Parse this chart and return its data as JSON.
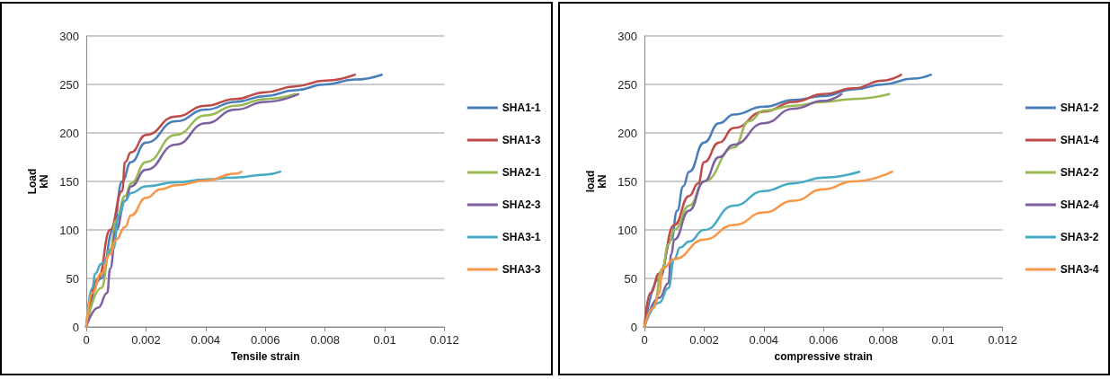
{
  "chart_data": [
    {
      "type": "line",
      "xlabel": "Tensile strain",
      "ylabel": "Load\nkN",
      "xlim": [
        0,
        0.012
      ],
      "xticks": [
        0,
        0.002,
        0.004,
        0.006,
        0.008,
        0.01,
        0.012
      ],
      "ylim": [
        0,
        300
      ],
      "yticks": [
        0,
        50,
        100,
        150,
        200,
        250,
        300
      ],
      "grid": "y",
      "legend": "right",
      "marker": "none",
      "line_style": "solid",
      "series": [
        {
          "name": "SHA1-1",
          "color": "#4a7ebb",
          "x": [
            0,
            0.0005,
            0.0009,
            0.0012,
            0.0015,
            0.002,
            0.003,
            0.004,
            0.005,
            0.006,
            0.007,
            0.008,
            0.009,
            0.0099
          ],
          "values": [
            0,
            50,
            100,
            150,
            170,
            190,
            212,
            224,
            232,
            238,
            244,
            250,
            255,
            260
          ]
        },
        {
          "name": "SHA1-3",
          "color": "#be4b48",
          "x": [
            0,
            0.0004,
            0.0008,
            0.0012,
            0.0013,
            0.0015,
            0.002,
            0.003,
            0.004,
            0.005,
            0.006,
            0.007,
            0.008,
            0.009
          ],
          "values": [
            0,
            50,
            100,
            140,
            170,
            180,
            198,
            217,
            228,
            235,
            242,
            248,
            254,
            260
          ]
        },
        {
          "name": "SHA2-1",
          "color": "#98b954",
          "x": [
            0,
            0.0005,
            0.0008,
            0.001,
            0.0013,
            0.0015,
            0.002,
            0.003,
            0.004,
            0.005,
            0.006,
            0.007
          ],
          "values": [
            0,
            40,
            80,
            110,
            135,
            148,
            170,
            198,
            218,
            228,
            235,
            240
          ]
        },
        {
          "name": "SHA2-3",
          "color": "#7d60a0",
          "x": [
            0,
            0.0004,
            0.0007,
            0.0008,
            0.001,
            0.0013,
            0.0015,
            0.002,
            0.003,
            0.004,
            0.005,
            0.006,
            0.0071
          ],
          "values": [
            0,
            20,
            35,
            60,
            100,
            130,
            145,
            162,
            188,
            210,
            224,
            232,
            240
          ]
        },
        {
          "name": "SHA3-1",
          "color": "#46aac5",
          "x": [
            0,
            0.0002,
            0.0003,
            0.0005,
            0.0009,
            0.0011,
            0.0013,
            0.0015,
            0.002,
            0.003,
            0.004,
            0.005,
            0.006,
            0.0065
          ],
          "values": [
            0,
            40,
            55,
            65,
            80,
            115,
            130,
            138,
            145,
            149,
            152,
            154,
            157,
            160
          ]
        },
        {
          "name": "SHA3-3",
          "color": "#f79646",
          "x": [
            0,
            0.0002,
            0.0005,
            0.0008,
            0.001,
            0.0013,
            0.0015,
            0.002,
            0.0025,
            0.003,
            0.004,
            0.005,
            0.0052
          ],
          "values": [
            0,
            35,
            55,
            75,
            90,
            103,
            115,
            133,
            142,
            146,
            151,
            158,
            160
          ]
        }
      ]
    },
    {
      "type": "line",
      "xlabel": "compressive strain",
      "ylabel": "load\nkN",
      "xlim": [
        0,
        0.012
      ],
      "xticks": [
        0,
        0.002,
        0.004,
        0.006,
        0.008,
        0.01,
        0.012
      ],
      "ylim": [
        0,
        300
      ],
      "yticks": [
        0,
        50,
        100,
        150,
        200,
        250,
        300
      ],
      "grid": "y",
      "legend": "right",
      "marker": "none",
      "line_style": "solid",
      "series": [
        {
          "name": "SHA1-2",
          "color": "#4a7ebb",
          "x": [
            0,
            0.0005,
            0.0009,
            0.0011,
            0.0013,
            0.0015,
            0.002,
            0.0025,
            0.003,
            0.004,
            0.005,
            0.006,
            0.007,
            0.008,
            0.009,
            0.0096
          ],
          "values": [
            0,
            50,
            90,
            120,
            145,
            160,
            190,
            210,
            219,
            227,
            234,
            238,
            245,
            250,
            256,
            260
          ]
        },
        {
          "name": "SHA1-4",
          "color": "#be4b48",
          "x": [
            0,
            0.0002,
            0.0005,
            0.001,
            0.0015,
            0.0018,
            0.002,
            0.0025,
            0.003,
            0.004,
            0.005,
            0.006,
            0.007,
            0.008,
            0.0086
          ],
          "values": [
            0,
            35,
            55,
            105,
            135,
            148,
            170,
            190,
            205,
            222,
            232,
            240,
            246,
            254,
            260
          ]
        },
        {
          "name": "SHA2-2",
          "color": "#98b954",
          "x": [
            0,
            0.0003,
            0.0006,
            0.0008,
            0.001,
            0.0015,
            0.002,
            0.003,
            0.0035,
            0.004,
            0.005,
            0.006,
            0.007,
            0.0082
          ],
          "values": [
            0,
            20,
            60,
            85,
            100,
            125,
            150,
            185,
            212,
            223,
            228,
            232,
            235,
            240
          ]
        },
        {
          "name": "SHA2-4",
          "color": "#7d60a0",
          "x": [
            0,
            0.0005,
            0.0008,
            0.0009,
            0.001,
            0.0015,
            0.002,
            0.0025,
            0.003,
            0.004,
            0.005,
            0.006,
            0.0066
          ],
          "values": [
            0,
            30,
            45,
            75,
            90,
            120,
            150,
            175,
            188,
            210,
            225,
            233,
            240
          ]
        },
        {
          "name": "SHA3-2",
          "color": "#46aac5",
          "x": [
            0,
            0.0005,
            0.0008,
            0.001,
            0.0012,
            0.0015,
            0.002,
            0.003,
            0.004,
            0.005,
            0.006,
            0.0072
          ],
          "values": [
            0,
            25,
            40,
            70,
            82,
            88,
            100,
            125,
            140,
            148,
            154,
            160
          ]
        },
        {
          "name": "SHA3-4",
          "color": "#f79646",
          "x": [
            0,
            0.0003,
            0.0005,
            0.0006,
            0.001,
            0.002,
            0.003,
            0.004,
            0.005,
            0.006,
            0.007,
            0.0083
          ],
          "values": [
            0,
            20,
            35,
            60,
            70,
            90,
            105,
            118,
            130,
            142,
            150,
            160
          ]
        }
      ]
    }
  ]
}
